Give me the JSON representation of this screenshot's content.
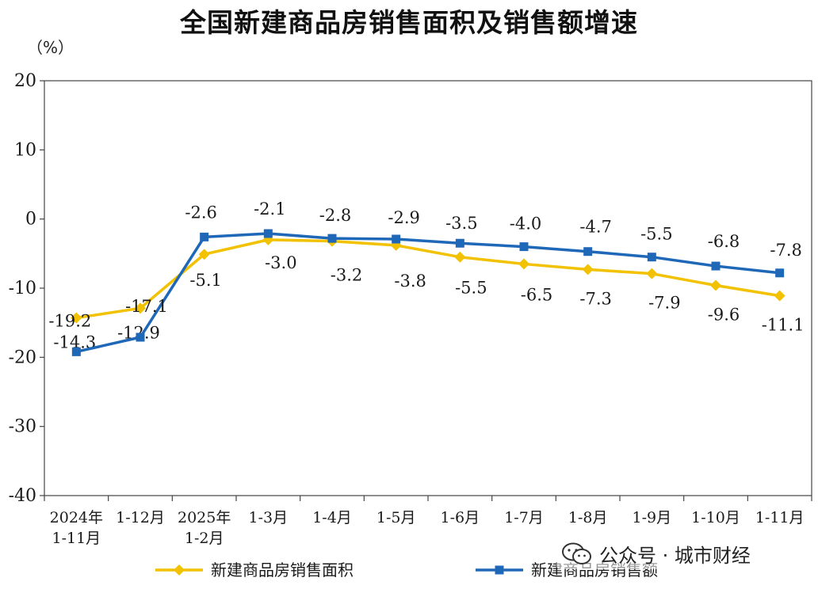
{
  "unit_label": "（%）",
  "watermark": {
    "icon": "wechat-icon",
    "text": "公众号 · 城市财经"
  },
  "chart_data": {
    "type": "line",
    "title": "全国新建商品房销售面积及销售额增速",
    "xlabel": "",
    "ylabel": "（%）",
    "ylim": [
      -40,
      20
    ],
    "yticks": [
      20,
      10,
      0,
      -10,
      -20,
      -30,
      -40
    ],
    "ytick_labels": [
      "20",
      "10",
      "0",
      "-10",
      "-20",
      "-30",
      "-40"
    ],
    "grid": false,
    "legend_position": "bottom",
    "categories": [
      [
        "2024年",
        "1-11月"
      ],
      [
        "1-12月"
      ],
      [
        "2025年",
        "1-2月"
      ],
      [
        "1-3月"
      ],
      [
        "1-4月"
      ],
      [
        "1-5月"
      ],
      [
        "1-6月"
      ],
      [
        "1-7月"
      ],
      [
        "1-8月"
      ],
      [
        "1-9月"
      ],
      [
        "1-10月"
      ],
      [
        "1-11月"
      ]
    ],
    "series": [
      {
        "name": "新建商品房销售面积",
        "color": "#F2C100",
        "marker": "diamond",
        "values": [
          -14.3,
          -12.9,
          -5.1,
          -3.0,
          -3.2,
          -3.8,
          -5.5,
          -6.5,
          -7.3,
          -7.9,
          -9.6,
          -11.1
        ],
        "labels": [
          "-14.3",
          "-12.9",
          "-5.1",
          "-3.0",
          "-3.2",
          "-3.8",
          "-5.5",
          "-6.5",
          "-7.3",
          "-7.9",
          "-9.6",
          "-11.1"
        ]
      },
      {
        "name": "新建商品房销售额",
        "color": "#1F68B8",
        "marker": "square",
        "values": [
          -19.2,
          -17.1,
          -2.6,
          -2.1,
          -2.8,
          -2.9,
          -3.5,
          -4.0,
          -4.7,
          -5.5,
          -6.8,
          -7.8
        ],
        "labels": [
          "-19.2",
          "-17.1",
          "-2.6",
          "-2.1",
          "-2.8",
          "-2.9",
          "-3.5",
          "-4.0",
          "-4.7",
          "-5.5",
          "-6.8",
          "-7.8"
        ]
      }
    ]
  }
}
